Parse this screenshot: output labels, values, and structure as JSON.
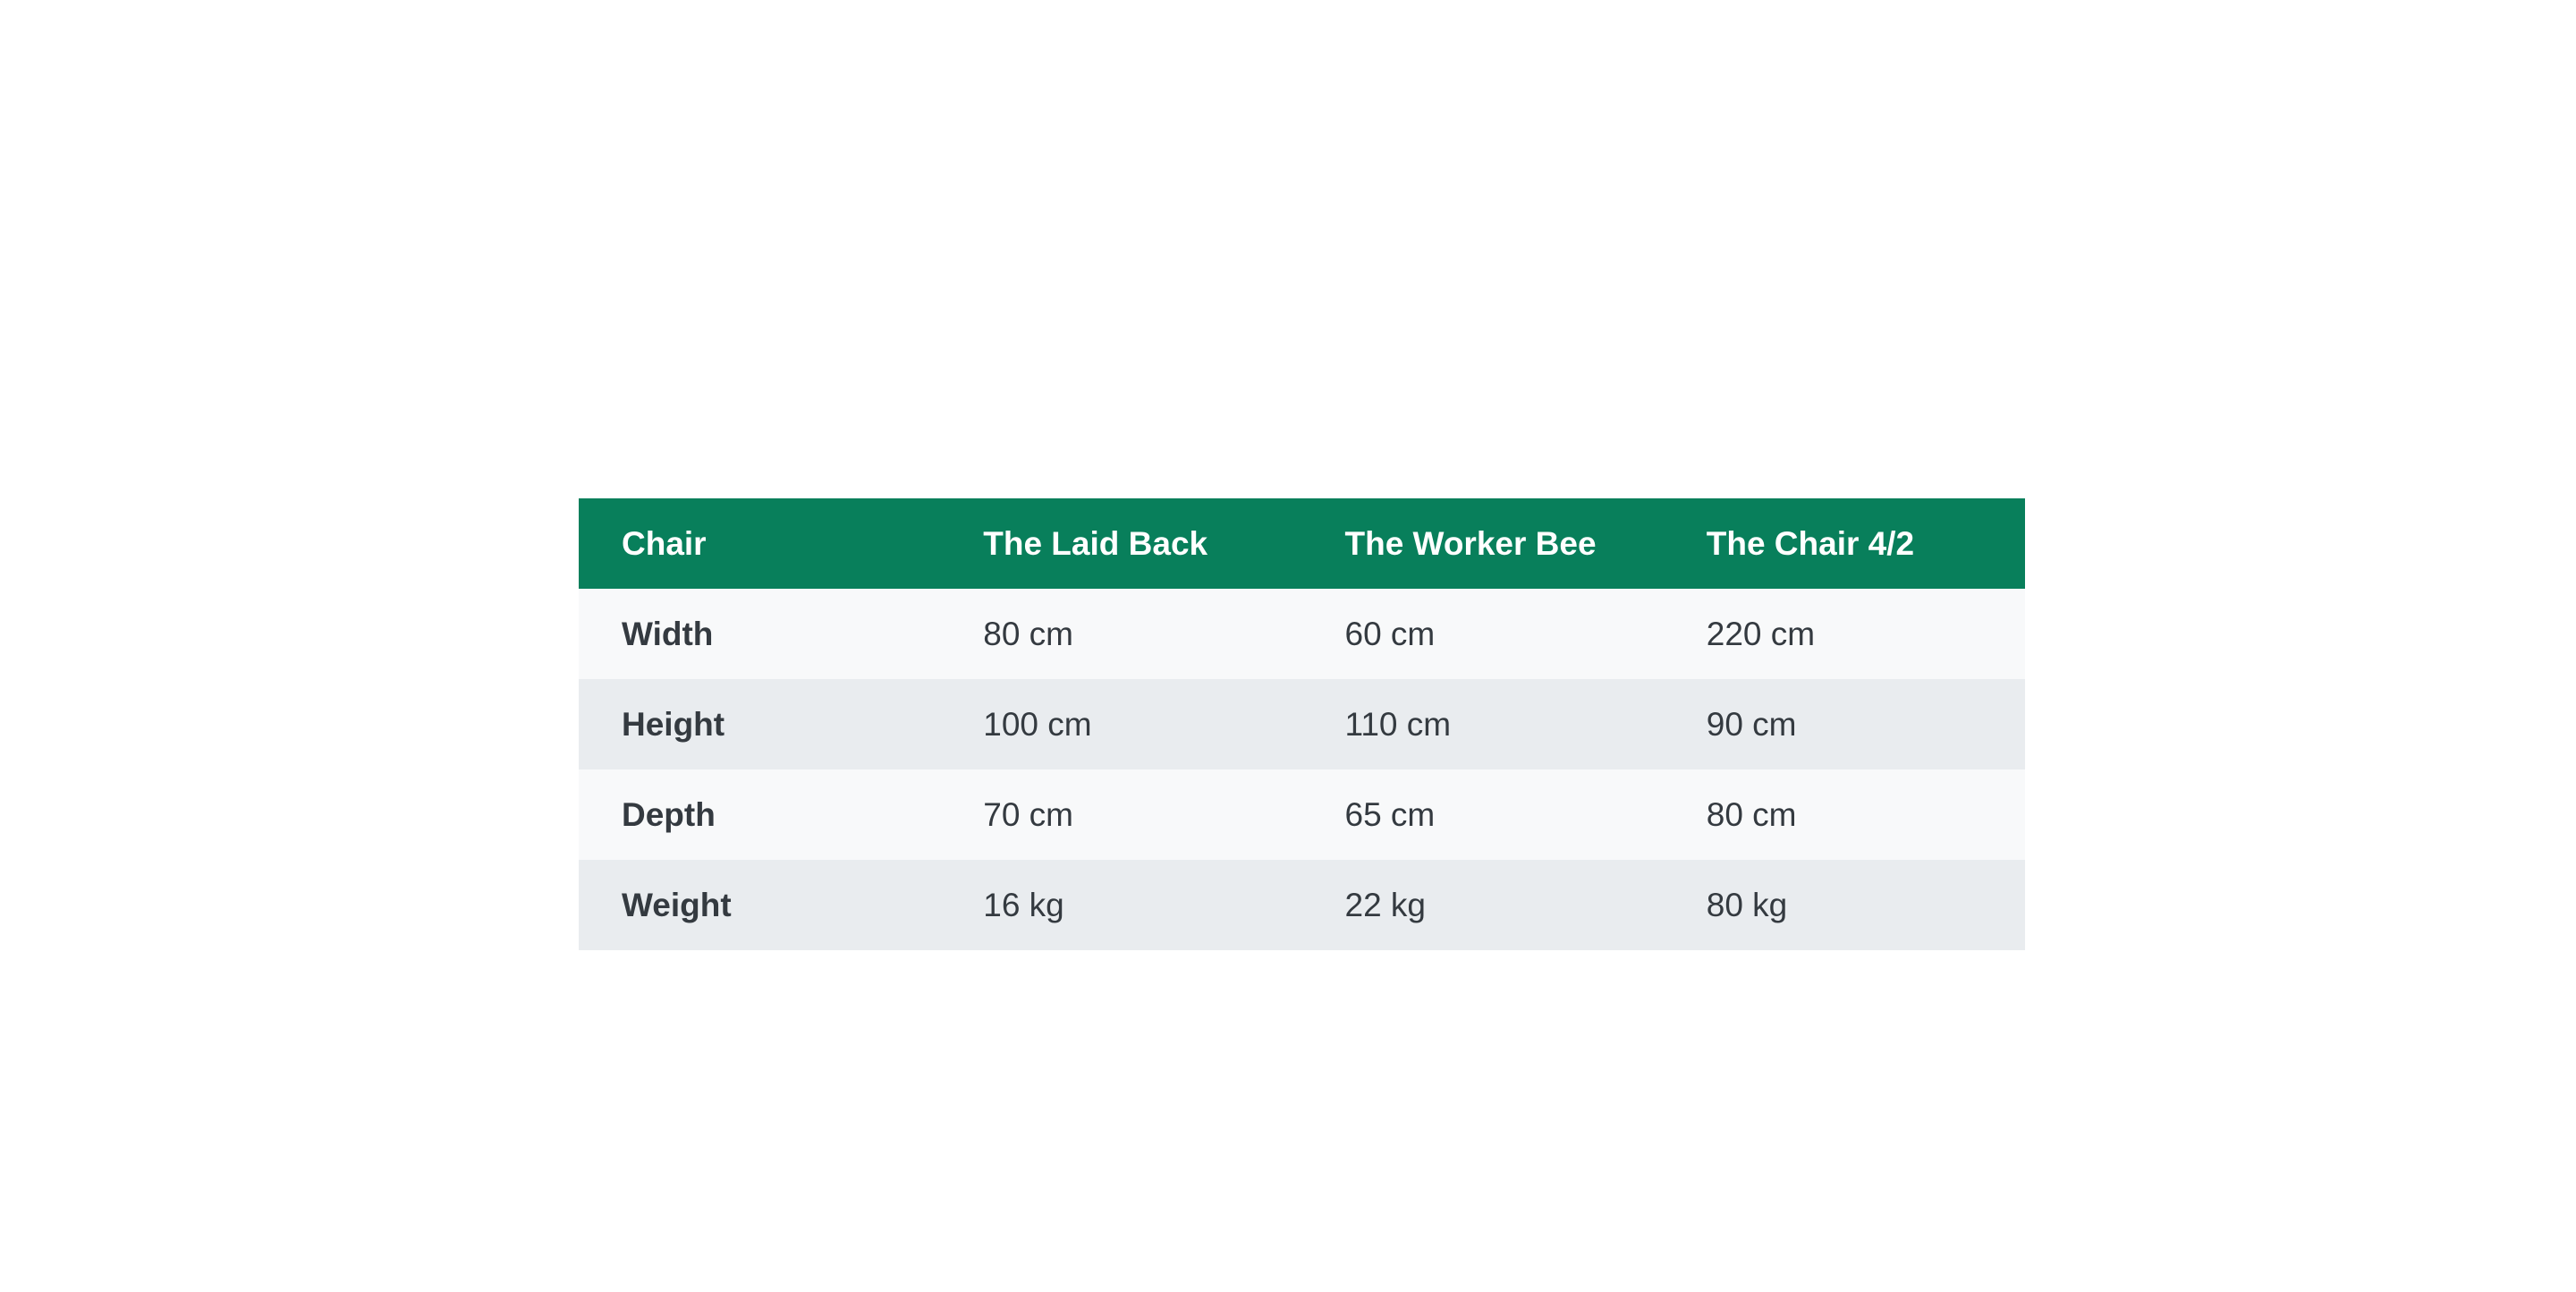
{
  "table": {
    "headers": [
      "Chair",
      "The Laid Back",
      "The Worker Bee",
      "The Chair 4/2"
    ],
    "rows": [
      {
        "label": "Width",
        "values": [
          "80 cm",
          "60 cm",
          "220 cm"
        ]
      },
      {
        "label": "Height",
        "values": [
          "100 cm",
          "110 cm",
          "90 cm"
        ]
      },
      {
        "label": "Depth",
        "values": [
          "70 cm",
          "65 cm",
          "80 cm"
        ]
      },
      {
        "label": "Weight",
        "values": [
          "16 kg",
          "22 kg",
          "80 kg"
        ]
      }
    ]
  },
  "colors": {
    "header_background": "#087f5b",
    "header_text": "#ffffff",
    "row_odd": "#f8f9fa",
    "row_even": "#e9ecef",
    "body_text": "#343a40"
  }
}
